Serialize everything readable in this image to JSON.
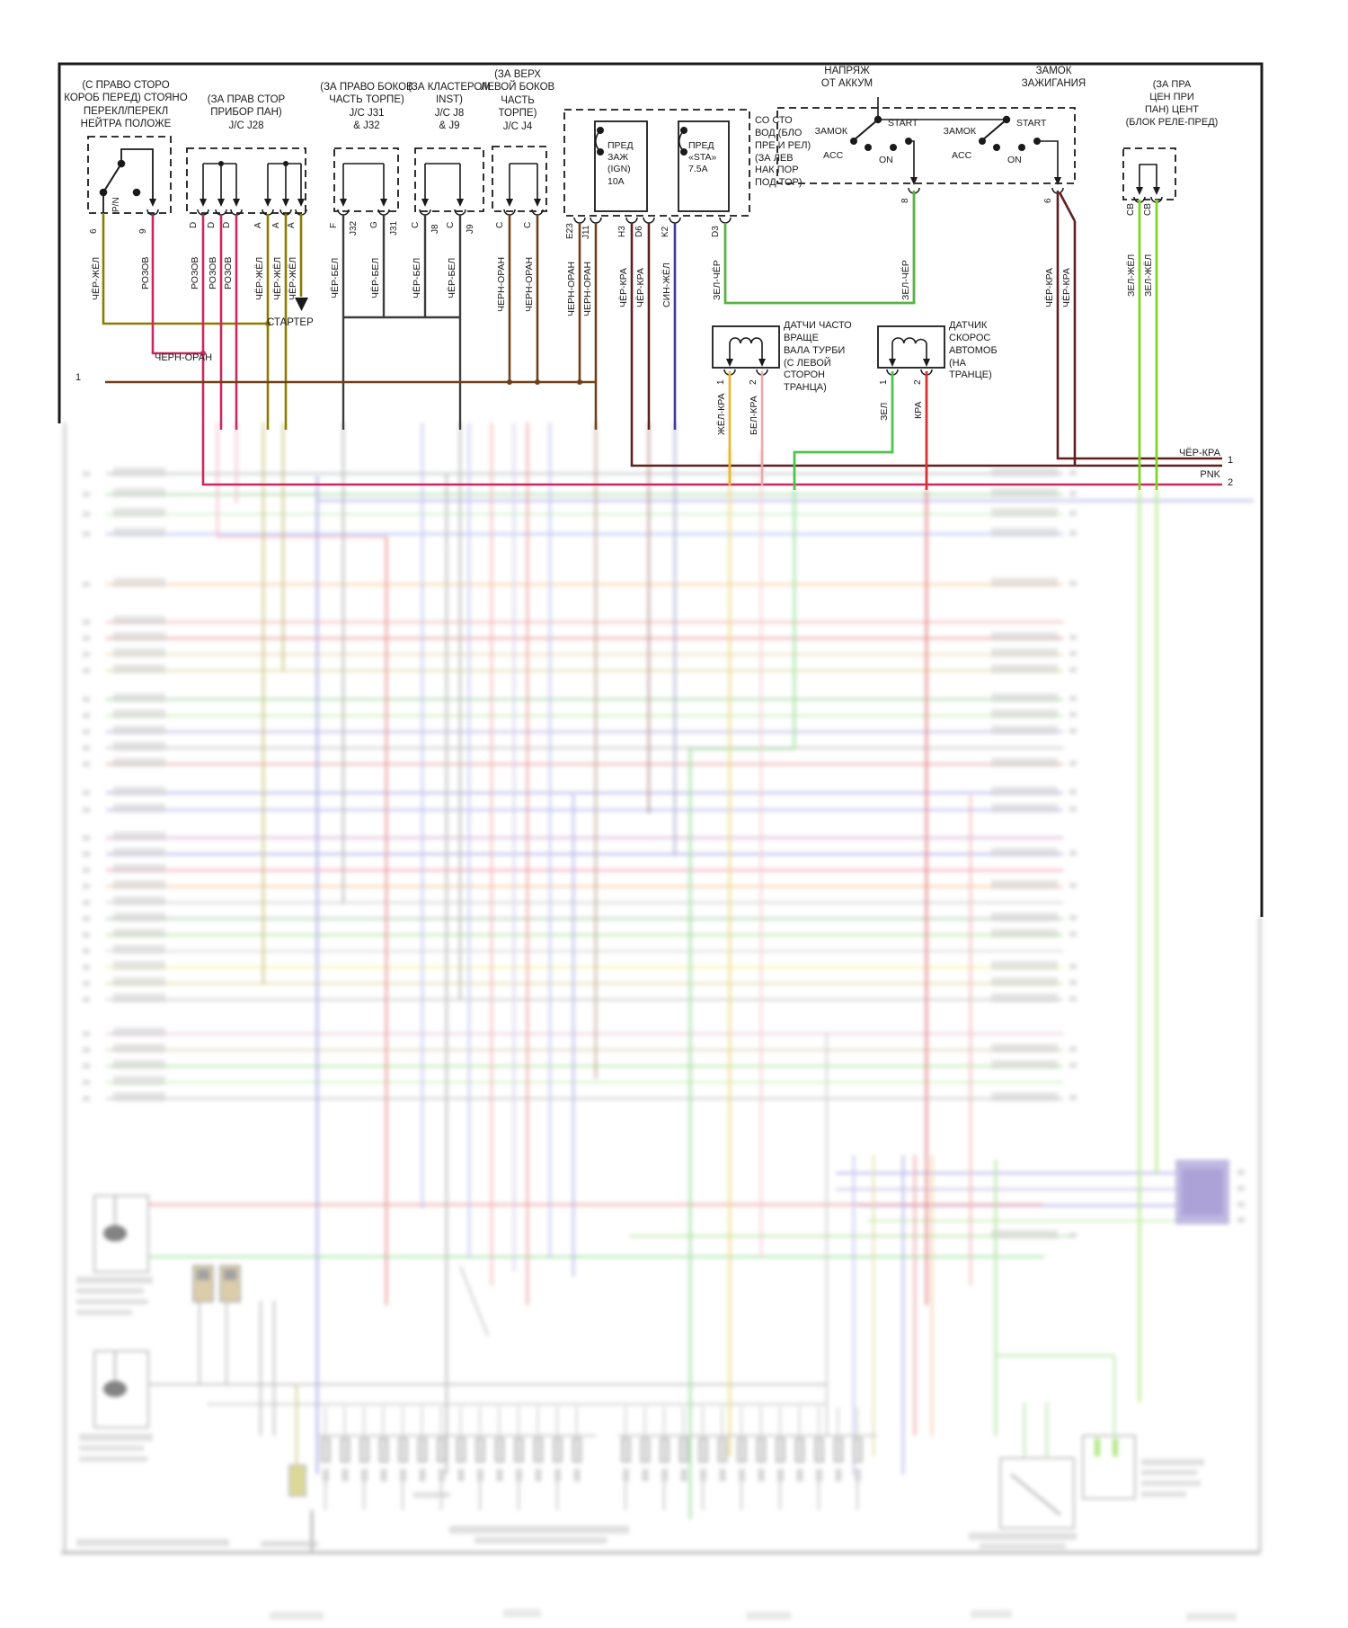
{
  "wires": {
    "cher_zhel": "ЧЁР-ЖЁЛ",
    "rozov": "РОЗОВ",
    "cher_bel": "ЧЁР-БЕЛ",
    "chern_oran": "ЧЕРН-ОРАН",
    "cher_kra": "ЧЁР-КРА",
    "sin_zhel": "СИН-ЖЁЛ",
    "zel_cher": "ЗЕЛ-ЧЁР",
    "zel_zhel": "ЗЕЛ-ЖЁЛ",
    "zhel_kra": "ЖЁЛ-КРА",
    "bel_kra": "БЕЛ-КРА",
    "zel": "ЗЕЛ",
    "kra": "КРА",
    "pnk": "PNK"
  },
  "pins": {
    "d": "D",
    "a": "A",
    "c": "C",
    "f": "F",
    "g": "G",
    "sv": "СВ",
    "p6": "6",
    "p9": "9",
    "p8": "8",
    "p1": "1",
    "p2": "2",
    "e23": "E23",
    "j11": "J11",
    "h3": "H3",
    "d6": "D6",
    "k2": "K2",
    "d3": "D3",
    "j32": "J32",
    "j31": "J31",
    "j8": "J8",
    "j9": "J9"
  },
  "components": {
    "pn_switch": {
      "label": "(С ПРАВО СТОРО\nКОРОБ ПЕРЕД) СТОЯНО\nПЕРЕКЛ/ПЕРЕКЛ\nНЕЙТРА ПОЛОЖЕ",
      "symbol": "P/N"
    },
    "j28": {
      "label": "(ЗА ПРАВ СТОР\nПРИБОР ПАН)\nJ/C J28"
    },
    "j31_32": {
      "label": "(ЗА ПРАВО БОКОВ\nЧАСТЬ ТОРПЕ)\nJ/C J31\n& J32"
    },
    "j8_9": {
      "label": "(ЗА КЛАСТЕРОМ\nINST)\nJ/C J8\n& J9"
    },
    "j4": {
      "label": "(ЗА ВЕРХ\nЛЕВОЙ БОКОВ\nЧАСТЬ\nТОРПЕ)\nJ/C J4"
    },
    "fuse_ign": {
      "label": "ПРЕД ЗАЖ\n(IGN)\n10А"
    },
    "fuse_sta": {
      "label": "ПРЕД\n«STA»\n7.5А"
    },
    "fuse_note": "СО СТО\nВОД (БЛО\nПРЕ И РЕЛ)\n(ЗА ЛЕВ\nНАК ПОР\nПОД ТОР)",
    "ignition": {
      "title_batt": "НАПРЯЖ\nОТ АККУМ",
      "title_lock": "ЗАМОК\nЗАЖИГАНИЯ",
      "pos_lock": "ЗАМОК",
      "pos_acc": "ACC",
      "pos_on": "ON",
      "pos_start": "START"
    },
    "relay_block": {
      "label": "(ЗА ПРА\nЦЕН ПРИ\nПАН) ЦЕНТ\n(БЛОК РЕЛЕ-ПРЕД)"
    },
    "sensor_turbine": {
      "label": "ДАТЧИ ЧАСТО\nВРАЩЕ\nВАЛА ТУРБИ\n(С ЛЕВОЙ\nСТОРОН\nТРАНЦА)"
    },
    "sensor_speed": {
      "label": "ДАТЧИК\nСКОРОС\nАВТОМОБ\n(НА\nТРАНЦЕ)"
    },
    "starter": "СТАРТЕР"
  },
  "refs": {
    "left_bus": "1",
    "right1": "1",
    "right2": "2"
  },
  "colors": {
    "cher_zhel": "#8a7c00",
    "rozov": "#cc2860",
    "cher_bel": "#3d3d3d",
    "chern_oran": "#6e4119",
    "cher_kra": "#5f1f1f",
    "sin_zhel": "#3c3c96",
    "zel_cher": "#58b345",
    "zel_zhel": "#7fd429",
    "zhel_kra": "#e7b73a",
    "bel_kra": "#eda7ad",
    "zel": "#4ec44e",
    "kra": "#d23434"
  }
}
